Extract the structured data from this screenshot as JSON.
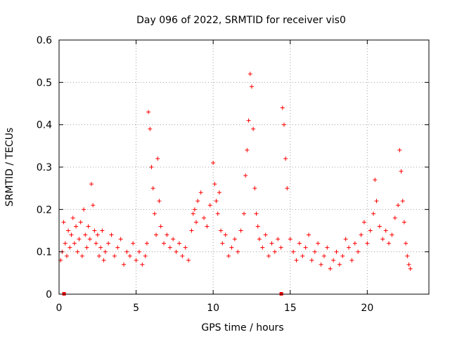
{
  "chart_data": {
    "type": "scatter",
    "title": "Day 096 of 2022, SRMTID for receiver vis0",
    "xlabel": "GPS time / hours",
    "ylabel": "SRMTID / TECUs",
    "xlim": [
      0,
      24
    ],
    "ylim": [
      0,
      0.6
    ],
    "xticks": [
      "0",
      "5",
      "10",
      "15",
      "20"
    ],
    "yticks": [
      "0",
      "0.1",
      "0.2",
      "0.3",
      "0.4",
      "0.5",
      "0.6"
    ],
    "grid": true,
    "marker": "plus",
    "color": "#ff0000",
    "series": [
      {
        "name": "vis0",
        "x": [
          0.1,
          0.2,
          0.3,
          0.4,
          0.5,
          0.6,
          0.7,
          0.8,
          0.9,
          1.0,
          1.1,
          1.2,
          1.3,
          1.4,
          1.5,
          1.6,
          1.7,
          1.8,
          1.9,
          2.0,
          2.1,
          2.2,
          2.3,
          2.4,
          2.5,
          2.6,
          2.7,
          2.8,
          2.9,
          3.0,
          3.2,
          3.4,
          3.6,
          3.8,
          4.0,
          4.2,
          4.4,
          4.6,
          4.8,
          5.0,
          5.2,
          5.4,
          5.6,
          5.7,
          5.8,
          5.9,
          6.0,
          6.1,
          6.2,
          6.3,
          6.4,
          6.5,
          6.6,
          6.8,
          7.0,
          7.2,
          7.4,
          7.6,
          7.8,
          8.0,
          8.2,
          8.4,
          8.6,
          8.7,
          8.8,
          8.9,
          9.0,
          9.2,
          9.4,
          9.6,
          9.8,
          10.0,
          10.1,
          10.2,
          10.3,
          10.4,
          10.5,
          10.6,
          10.8,
          11.0,
          11.2,
          11.4,
          11.6,
          11.8,
          12.0,
          12.1,
          12.2,
          12.3,
          12.4,
          12.5,
          12.6,
          12.7,
          12.8,
          12.9,
          13.0,
          13.2,
          13.4,
          13.6,
          13.8,
          14.0,
          14.2,
          14.4,
          14.5,
          14.6,
          14.7,
          14.8,
          15.0,
          15.2,
          15.4,
          15.6,
          15.8,
          16.0,
          16.2,
          16.4,
          16.6,
          16.8,
          17.0,
          17.2,
          17.4,
          17.6,
          17.8,
          18.0,
          18.2,
          18.4,
          18.6,
          18.8,
          19.0,
          19.2,
          19.4,
          19.6,
          19.8,
          20.0,
          20.2,
          20.4,
          20.5,
          20.6,
          20.8,
          21.0,
          21.2,
          21.4,
          21.6,
          21.8,
          22.0,
          22.1,
          22.2,
          22.3,
          22.4,
          22.5,
          22.6,
          22.7,
          22.8
        ],
        "y": [
          0.08,
          0.1,
          0.17,
          0.12,
          0.09,
          0.15,
          0.11,
          0.14,
          0.18,
          0.12,
          0.16,
          0.1,
          0.13,
          0.17,
          0.09,
          0.2,
          0.14,
          0.11,
          0.16,
          0.13,
          0.26,
          0.21,
          0.15,
          0.12,
          0.14,
          0.09,
          0.11,
          0.15,
          0.08,
          0.1,
          0.12,
          0.14,
          0.09,
          0.11,
          0.13,
          0.07,
          0.1,
          0.09,
          0.12,
          0.08,
          0.1,
          0.07,
          0.09,
          0.12,
          0.43,
          0.39,
          0.3,
          0.25,
          0.19,
          0.14,
          0.32,
          0.22,
          0.16,
          0.12,
          0.14,
          0.11,
          0.13,
          0.1,
          0.12,
          0.09,
          0.11,
          0.08,
          0.15,
          0.19,
          0.2,
          0.17,
          0.22,
          0.24,
          0.18,
          0.16,
          0.21,
          0.31,
          0.26,
          0.22,
          0.19,
          0.24,
          0.15,
          0.12,
          0.14,
          0.09,
          0.11,
          0.13,
          0.1,
          0.15,
          0.19,
          0.28,
          0.34,
          0.41,
          0.52,
          0.49,
          0.39,
          0.25,
          0.19,
          0.16,
          0.13,
          0.11,
          0.14,
          0.09,
          0.12,
          0.1,
          0.13,
          0.11,
          0.44,
          0.4,
          0.32,
          0.25,
          0.13,
          0.1,
          0.08,
          0.12,
          0.09,
          0.11,
          0.14,
          0.08,
          0.1,
          0.12,
          0.07,
          0.09,
          0.11,
          0.06,
          0.08,
          0.1,
          0.07,
          0.09,
          0.13,
          0.11,
          0.08,
          0.12,
          0.1,
          0.14,
          0.17,
          0.12,
          0.15,
          0.19,
          0.27,
          0.22,
          0.16,
          0.13,
          0.15,
          0.12,
          0.14,
          0.18,
          0.21,
          0.34,
          0.29,
          0.22,
          0.17,
          0.12,
          0.09,
          0.07,
          0.06
        ],
        "markers_on_axis": [
          0.3,
          14.4
        ]
      }
    ]
  }
}
